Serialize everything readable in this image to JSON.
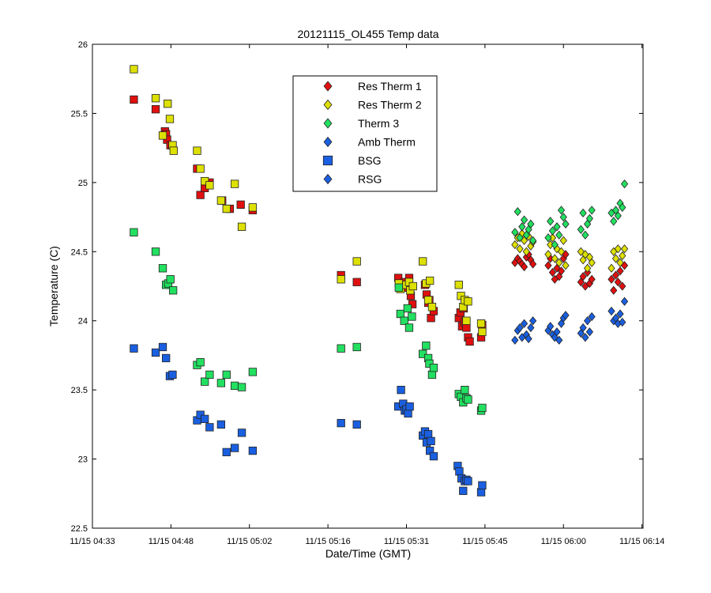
{
  "chart_data": {
    "type": "scatter",
    "title": "20121115_OL455 Temp data",
    "xlabel": "Date/Time (GMT)",
    "ylabel": "Temperature (C)",
    "x_unit": "minutes",
    "xlim": [
      273,
      374
    ],
    "ylim": [
      22.5,
      26
    ],
    "xticks": [
      {
        "value": 273,
        "label": "11/15 04:33"
      },
      {
        "value": 287.4,
        "label": "11/15 04:48"
      },
      {
        "value": 301.8,
        "label": "11/15 05:02"
      },
      {
        "value": 316.2,
        "label": "11/15 05:16"
      },
      {
        "value": 330.6,
        "label": "11/15 05:31"
      },
      {
        "value": 345,
        "label": "11/15 05:45"
      },
      {
        "value": 359.4,
        "label": "11/15 06:00"
      },
      {
        "value": 373.8,
        "label": "11/15 06:14"
      }
    ],
    "yticks": [
      {
        "value": 22.5,
        "label": "22.5"
      },
      {
        "value": 23,
        "label": "23"
      },
      {
        "value": 23.5,
        "label": "23.5"
      },
      {
        "value": 24,
        "label": "24"
      },
      {
        "value": 24.5,
        "label": "24.5"
      },
      {
        "value": 25,
        "label": "25"
      },
      {
        "value": 25.5,
        "label": "25.5"
      },
      {
        "value": 26,
        "label": "26"
      }
    ],
    "grid": false,
    "legend_position": "top-center",
    "series": [
      {
        "name": "Res Therm 1",
        "marker": "square",
        "color": "#e01010",
        "x": [
          280.6,
          284.6,
          286.3,
          286.5,
          286.7,
          287.3,
          287.7,
          292.2,
          292.8,
          293.6,
          294.5,
          296.8,
          298.2,
          300.2,
          302.4,
          318.6,
          321.5,
          329.1,
          330.3,
          330.8,
          331.1,
          331.4,
          331.7,
          334.0,
          334.3,
          334.6,
          334.8,
          335.1,
          335.6,
          340.2,
          340.5,
          340.8,
          341.1,
          341.3,
          341.6,
          341.9,
          342.2,
          344.3,
          344.5
        ],
        "y": [
          25.6,
          25.53,
          25.37,
          25.35,
          25.31,
          25.27,
          25.27,
          25.1,
          24.91,
          24.96,
          25.0,
          24.87,
          24.81,
          24.84,
          24.8,
          24.33,
          24.28,
          24.31,
          24.28,
          24.24,
          24.31,
          24.18,
          24.12,
          24.26,
          24.19,
          24.13,
          24.15,
          24.02,
          24.07,
          24.02,
          24.06,
          23.96,
          24.09,
          23.99,
          23.95,
          23.88,
          23.85,
          23.88,
          23.97
        ]
      },
      {
        "name": "Res Therm 2",
        "marker": "square",
        "color": "#dde000",
        "x": [
          280.6,
          284.6,
          285.9,
          286.8,
          287.2,
          287.7,
          287.9,
          292.2,
          292.8,
          293.6,
          294.5,
          296.6,
          297.6,
          299.1,
          300.4,
          302.4,
          318.6,
          321.5,
          329.2,
          329.5,
          330.6,
          331.1,
          331.3,
          331.8,
          333.6,
          334.2,
          334.6,
          334.9,
          335.3,
          340.2,
          340.6,
          341.0,
          341.3,
          341.6,
          341.9,
          344.3,
          344.5
        ],
        "y": [
          25.82,
          25.61,
          25.34,
          25.57,
          25.46,
          25.27,
          25.23,
          25.23,
          25.1,
          25.01,
          24.98,
          24.87,
          24.81,
          24.99,
          24.68,
          24.82,
          24.3,
          24.43,
          24.27,
          24.23,
          24.26,
          24.28,
          24.22,
          24.25,
          24.43,
          24.27,
          24.15,
          24.29,
          24.1,
          24.26,
          24.18,
          24.1,
          24.15,
          24.0,
          24.14,
          23.98,
          23.92
        ]
      },
      {
        "name": "Therm 3",
        "marker": "square",
        "color": "#22e060",
        "x": [
          280.6,
          284.6,
          285.9,
          286.5,
          286.9,
          287.3,
          287.8,
          292.2,
          292.8,
          293.6,
          294.5,
          296.6,
          297.6,
          299.1,
          300.4,
          302.4,
          318.6,
          321.5,
          329.2,
          329.5,
          330.2,
          330.8,
          331.1,
          331.6,
          333.6,
          334.2,
          334.6,
          334.8,
          335.3,
          335.6,
          340.2,
          340.6,
          341.0,
          341.3,
          341.6,
          341.9,
          344.3,
          344.5
        ],
        "y": [
          24.64,
          24.5,
          24.38,
          24.26,
          24.27,
          24.3,
          24.22,
          23.68,
          23.7,
          23.56,
          23.61,
          23.55,
          23.61,
          23.53,
          23.52,
          23.63,
          23.8,
          23.81,
          24.24,
          24.05,
          24.0,
          24.09,
          23.95,
          24.03,
          23.76,
          23.82,
          23.73,
          23.69,
          23.61,
          23.66,
          23.47,
          23.45,
          23.41,
          23.5,
          23.44,
          23.43,
          23.35,
          23.37
        ]
      },
      {
        "name": "Amb Therm",
        "marker": "diamond",
        "color": "#e01010",
        "x": [
          350.5,
          351.0,
          351.4,
          351.8,
          352.2,
          352.6,
          353.0,
          353.4,
          353.8,
          356.6,
          357.0,
          357.4,
          357.8,
          358.2,
          358.6,
          359.0,
          359.4,
          359.8,
          362.6,
          363.0,
          363.4,
          363.8,
          364.2,
          364.6,
          368.2,
          368.6,
          369.0,
          369.4,
          369.8,
          370.2,
          370.6
        ],
        "y": [
          24.42,
          24.45,
          24.43,
          24.41,
          24.39,
          24.46,
          24.48,
          24.44,
          24.41,
          24.4,
          24.45,
          24.35,
          24.3,
          24.38,
          24.32,
          24.36,
          24.45,
          24.48,
          24.28,
          24.32,
          24.25,
          24.35,
          24.27,
          24.3,
          24.3,
          24.22,
          24.33,
          24.28,
          24.36,
          24.25,
          24.4
        ]
      },
      {
        "name": "BSG",
        "marker": "diamond",
        "color": "#dde000",
        "x": [
          350.5,
          351.0,
          351.4,
          351.8,
          352.2,
          352.6,
          353.0,
          353.4,
          353.8,
          356.6,
          357.0,
          357.4,
          357.8,
          358.2,
          358.6,
          359.0,
          359.4,
          359.8,
          362.6,
          363.0,
          363.4,
          363.8,
          364.2,
          364.6,
          368.2,
          368.6,
          369.0,
          369.4,
          369.8,
          370.2,
          370.6
        ],
        "y": [
          24.55,
          24.6,
          24.52,
          24.63,
          24.58,
          24.5,
          24.61,
          24.54,
          24.57,
          24.48,
          24.55,
          24.6,
          24.45,
          24.52,
          24.42,
          24.5,
          24.58,
          24.4,
          24.5,
          24.44,
          24.48,
          24.38,
          24.46,
          24.42,
          24.38,
          24.5,
          24.45,
          24.52,
          24.42,
          24.47,
          24.52
        ]
      },
      {
        "name": "RSG",
        "marker": "diamond",
        "color": "#22e060",
        "x": [
          350.5,
          351.0,
          351.4,
          351.8,
          352.2,
          352.6,
          353.0,
          353.4,
          353.8,
          356.6,
          357.0,
          357.4,
          357.8,
          358.2,
          358.6,
          359.0,
          359.4,
          359.8,
          362.6,
          363.0,
          363.4,
          363.8,
          364.2,
          364.6,
          368.2,
          368.6,
          369.0,
          369.4,
          369.8,
          370.2,
          370.6
        ],
        "y": [
          24.64,
          24.79,
          24.6,
          24.68,
          24.73,
          24.62,
          24.66,
          24.7,
          24.58,
          24.6,
          24.72,
          24.65,
          24.55,
          24.68,
          24.62,
          24.8,
          24.75,
          24.7,
          24.66,
          24.78,
          24.62,
          24.7,
          24.74,
          24.8,
          24.78,
          24.72,
          24.8,
          24.76,
          24.85,
          24.82,
          24.99
        ]
      },
      {
        "name": "",
        "marker": "square",
        "color": "#1a5fe0",
        "x": [
          280.6,
          284.6,
          285.9,
          286.5,
          287.2,
          287.7,
          292.2,
          292.8,
          293.6,
          294.5,
          296.6,
          297.6,
          299.1,
          300.4,
          302.4,
          318.6,
          321.5,
          329.1,
          329.6,
          330.0,
          330.3,
          330.6,
          330.9,
          331.2,
          333.6,
          334.0,
          334.3,
          334.6,
          334.9,
          335.1,
          335.6,
          340.0,
          340.3,
          340.7,
          341.0,
          341.3,
          341.6,
          341.9,
          344.3,
          344.5
        ],
        "y": [
          23.8,
          23.77,
          23.81,
          23.73,
          23.6,
          23.61,
          23.28,
          23.32,
          23.29,
          23.23,
          23.25,
          23.05,
          23.08,
          23.19,
          23.06,
          23.26,
          23.25,
          23.38,
          23.5,
          23.4,
          23.35,
          23.36,
          23.33,
          23.38,
          23.17,
          23.2,
          23.12,
          23.18,
          23.06,
          23.13,
          23.02,
          22.95,
          22.91,
          22.86,
          22.77,
          22.84,
          22.85,
          22.84,
          22.76,
          22.81
        ]
      },
      {
        "name": "",
        "marker": "diamond",
        "color": "#1a5fe0",
        "x": [
          350.5,
          351.0,
          351.4,
          351.8,
          352.2,
          352.6,
          353.0,
          353.4,
          353.8,
          356.6,
          357.0,
          357.4,
          357.8,
          358.2,
          358.6,
          359.0,
          359.4,
          359.8,
          362.6,
          363.0,
          363.4,
          363.8,
          364.2,
          364.6,
          368.2,
          368.6,
          369.0,
          369.4,
          369.8,
          370.2,
          370.6
        ],
        "y": [
          23.86,
          23.93,
          23.95,
          23.88,
          23.98,
          23.9,
          23.87,
          23.95,
          24.0,
          23.93,
          23.96,
          23.9,
          23.88,
          23.92,
          23.86,
          23.98,
          24.02,
          24.04,
          23.91,
          23.95,
          23.88,
          24.0,
          23.92,
          24.03,
          24.07,
          24.0,
          24.02,
          23.98,
          24.05,
          23.99,
          24.14
        ]
      }
    ],
    "legend": [
      {
        "label": "Res Therm 1",
        "marker": "diamond",
        "color": "#e01010"
      },
      {
        "label": "Res Therm 2",
        "marker": "diamond",
        "color": "#dde000"
      },
      {
        "label": "Therm 3",
        "marker": "diamond",
        "color": "#22e060"
      },
      {
        "label": "Amb Therm",
        "marker": "diamond",
        "color": "#1a5fe0"
      },
      {
        "label": "BSG",
        "marker": "square",
        "color": "#1a5fe0"
      },
      {
        "label": "RSG",
        "marker": "diamond",
        "color": "#1a5fe0"
      }
    ]
  }
}
